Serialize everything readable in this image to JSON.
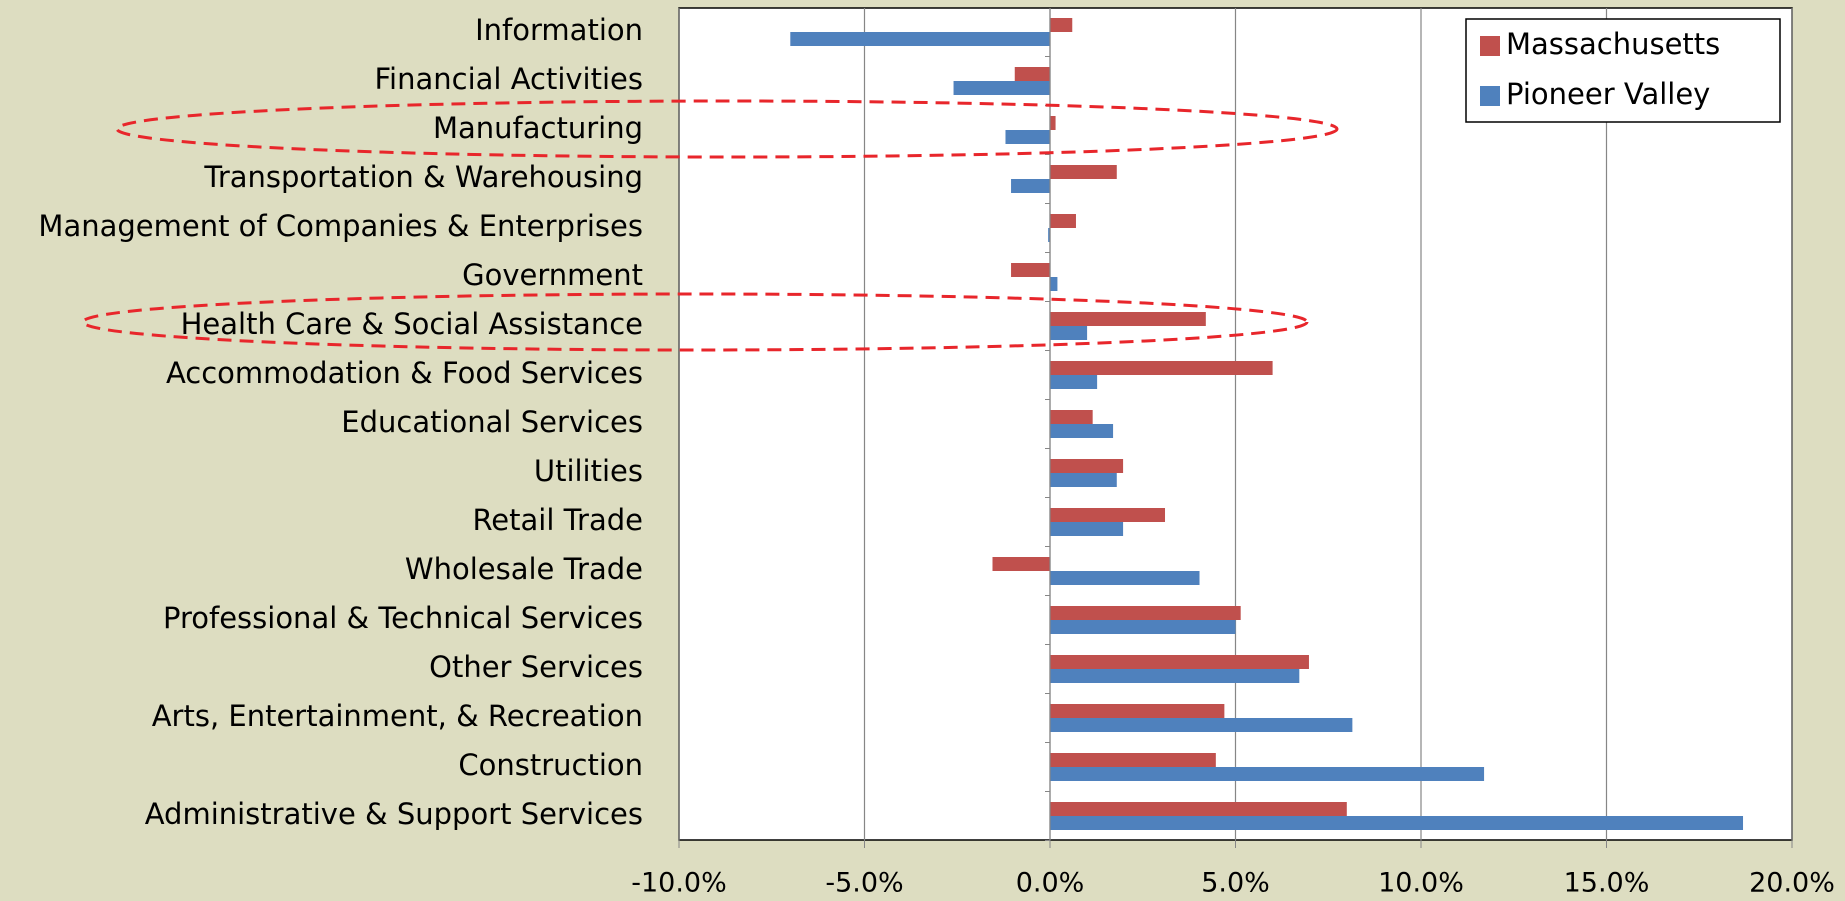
{
  "chart_data": {
    "type": "barh",
    "categories": [
      "Information",
      "Financial Activities",
      "Manufacturing",
      "Transportation & Warehousing",
      "Management of Companies & Enterprises",
      "Government",
      "Health Care & Social Assistance",
      "Accommodation & Food Services",
      "Educational Services",
      "Utilities",
      "Retail Trade",
      "Wholesale Trade",
      "Professional & Technical Services",
      "Other Services",
      "Arts, Entertainment, & Recreation",
      "Construction",
      "Administrative & Support Services"
    ],
    "series": [
      {
        "name": "Massachusetts",
        "color": "#c0504d",
        "values": [
          0.6,
          -0.95,
          0.15,
          1.8,
          0.7,
          -1.05,
          4.2,
          6.0,
          1.15,
          1.97,
          3.1,
          -1.55,
          5.14,
          6.98,
          4.7,
          4.47,
          8.0
        ]
      },
      {
        "name": "Pioneer Valley",
        "color": "#4f81bd",
        "values": [
          -7.0,
          -2.6,
          -1.2,
          -1.05,
          -0.05,
          0.2,
          1.0,
          1.27,
          1.7,
          1.8,
          1.97,
          4.03,
          5.0,
          6.72,
          8.15,
          11.7,
          18.68
        ]
      }
    ],
    "xlim": [
      -10,
      20
    ],
    "xticks": [
      {
        "value": -10,
        "label": "-10.0%"
      },
      {
        "value": -5,
        "label": "-5.0%"
      },
      {
        "value": 0,
        "label": "0.0%"
      },
      {
        "value": 5,
        "label": "5.0%"
      },
      {
        "value": 10,
        "label": "10.0%"
      },
      {
        "value": 15,
        "label": "15.0%"
      },
      {
        "value": 20,
        "label": "20.0%"
      }
    ],
    "grid": true,
    "legend": "upper-right"
  }
}
